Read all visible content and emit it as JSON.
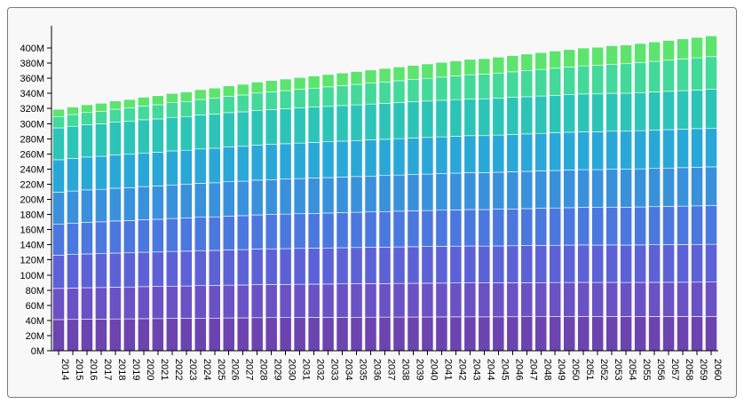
{
  "chart_data": {
    "type": "bar",
    "stacked": true,
    "title": "",
    "xlabel": "",
    "ylabel": "",
    "ylim": [
      0,
      420000000
    ],
    "y_ticks": [
      "0M",
      "20M",
      "40M",
      "60M",
      "80M",
      "100M",
      "120M",
      "140M",
      "160M",
      "180M",
      "200M",
      "220M",
      "240M",
      "260M",
      "280M",
      "300M",
      "320M",
      "340M",
      "360M",
      "380M",
      "400M"
    ],
    "grid": false,
    "legend": "none",
    "categories": [
      "2014",
      "2015",
      "2016",
      "2017",
      "2018",
      "2019",
      "2020",
      "2021",
      "2022",
      "2023",
      "2024",
      "2025",
      "2026",
      "2027",
      "2028",
      "2029",
      "2030",
      "2031",
      "2032",
      "2033",
      "2034",
      "2035",
      "2036",
      "2037",
      "2038",
      "2039",
      "2040",
      "2041",
      "2042",
      "2043",
      "2044",
      "2045",
      "2046",
      "2047",
      "2048",
      "2049",
      "2050",
      "2051",
      "2052",
      "2053",
      "2054",
      "2055",
      "2056",
      "2057",
      "2058",
      "2059",
      "2060"
    ],
    "totals": [
      319,
      322,
      325,
      327,
      330,
      332,
      335,
      337,
      340,
      342,
      345,
      347,
      350,
      352,
      355,
      357,
      359,
      361,
      363,
      365,
      367,
      369,
      371,
      373,
      375,
      377,
      379,
      381,
      383,
      385,
      386,
      388,
      390,
      392,
      394,
      396,
      398,
      400,
      401,
      403,
      404,
      406,
      408,
      410,
      412,
      414,
      416
    ],
    "segment_fractions_first": [
      0.129,
      0.129,
      0.138,
      0.129,
      0.132,
      0.134,
      0.132,
      0.047,
      0.03
    ],
    "segment_fractions_last": [
      0.109,
      0.109,
      0.12,
      0.123,
      0.123,
      0.123,
      0.123,
      0.104,
      0.066
    ],
    "series_colors": [
      "#6b44b0",
      "#6a52c4",
      "#5c62d6",
      "#4b78de",
      "#3991dc",
      "#29a8d8",
      "#2dc4b8",
      "#42d99a",
      "#5ce46e",
      "#7aee48"
    ]
  }
}
